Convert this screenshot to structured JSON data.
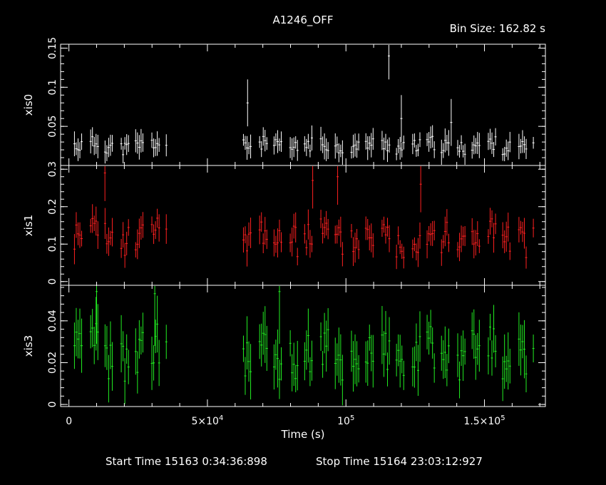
{
  "title": "A1246_OFF",
  "bin_size_text": "Bin Size: 162.82 s",
  "xlabel": "Time (s)",
  "footer": {
    "start": "Start Time 15163  0:34:36:898",
    "stop": "Stop Time 15164 23:03:12:927"
  },
  "colors": {
    "background": "#000000",
    "axes": "#ffffff",
    "xis0": "#ffffff",
    "xis1": "#ff2020",
    "xis3": "#22ee22"
  },
  "chart_data": {
    "type": "scatter",
    "x_range": [
      -3000,
      172000
    ],
    "x_ticks": [
      {
        "value": 0,
        "label": "0"
      },
      {
        "value": 50000,
        "label": "5×10",
        "sup": "4"
      },
      {
        "value": 100000,
        "label": "10",
        "sup": "5"
      },
      {
        "value": 150000,
        "label": "1.5×10",
        "sup": "5"
      }
    ],
    "gti": [
      [
        2000,
        35500
      ],
      [
        63000,
        168000
      ]
    ],
    "panels": [
      {
        "name": "xis0",
        "ylabel": "xis0",
        "ylim": [
          0,
          0.155
        ],
        "y_ticks": [
          {
            "value": 0.05,
            "label": "0.05"
          },
          {
            "value": 0.1,
            "label": "0.1"
          },
          {
            "value": 0.15,
            "label": "0.15"
          }
        ],
        "mean": 0.025,
        "noise": 0.009,
        "err": 0.012,
        "seed": 11,
        "spikes": [
          [
            64500,
            0.08
          ],
          [
            115500,
            0.14
          ],
          [
            120000,
            0.06
          ],
          [
            138000,
            0.055
          ]
        ]
      },
      {
        "name": "xis1",
        "ylabel": "xis1",
        "ylim": [
          -0.01,
          0.31
        ],
        "y_ticks": [
          {
            "value": 0,
            "label": "0"
          },
          {
            "value": 0.1,
            "label": "0.1"
          },
          {
            "value": 0.2,
            "label": "0.2"
          },
          {
            "value": 0.3,
            "label": "0.3"
          }
        ],
        "mean": 0.12,
        "noise": 0.045,
        "err": 0.03,
        "seed": 23,
        "spikes": [
          [
            13000,
            0.29
          ],
          [
            88000,
            0.27
          ],
          [
            97000,
            0.28
          ],
          [
            127000,
            0.26
          ]
        ]
      },
      {
        "name": "xis3",
        "ylabel": "xis3",
        "ylim": [
          -0.001,
          0.057
        ],
        "y_ticks": [
          {
            "value": 0,
            "label": "0"
          },
          {
            "value": 0.02,
            "label": "0.02"
          },
          {
            "value": 0.04,
            "label": "0.04"
          }
        ],
        "mean": 0.024,
        "noise": 0.011,
        "err": 0.01,
        "seed": 37,
        "spikes": [
          [
            10000,
            0.054
          ],
          [
            31000,
            0.053
          ],
          [
            76000,
            0.054
          ]
        ]
      }
    ]
  }
}
